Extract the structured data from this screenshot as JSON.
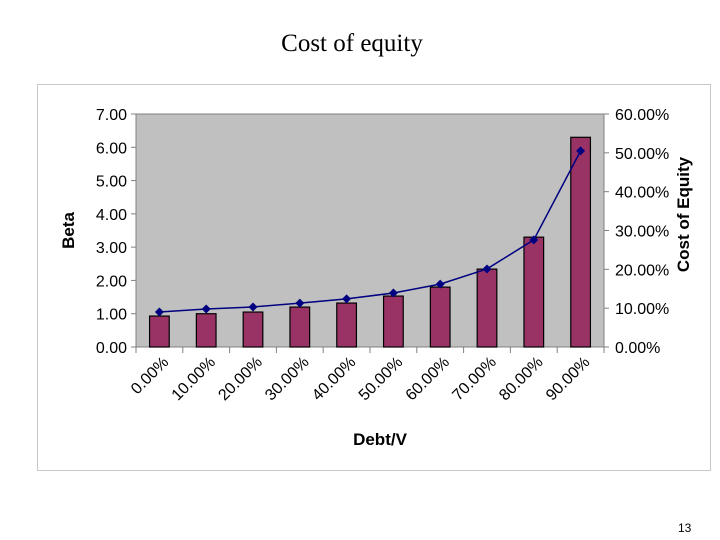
{
  "slide": {
    "title": "Cost of equity",
    "page_number": "13"
  },
  "colors": {
    "plot_background": "#c0c0c0",
    "bar_fill": "#993366",
    "bar_stroke": "#000000",
    "line": "#000080",
    "marker": "#000080"
  },
  "chart_data": {
    "type": "bar",
    "title": "",
    "xlabel": "Debt/V",
    "ylabel": "Beta",
    "y2label": "Cost of Equity",
    "categories": [
      "0.00%",
      "10.00%",
      "20.00%",
      "30.00%",
      "40.00%",
      "50.00%",
      "60.00%",
      "70.00%",
      "80.00%",
      "90.00%"
    ],
    "series": [
      {
        "name": "Beta",
        "type": "bar",
        "axis": "left",
        "values": [
          0.93,
          1.0,
          1.05,
          1.2,
          1.32,
          1.53,
          1.8,
          2.34,
          3.3,
          6.3
        ]
      },
      {
        "name": "Cost of Equity",
        "type": "line",
        "axis": "right",
        "values": [
          0.09,
          0.098,
          0.103,
          0.113,
          0.124,
          0.139,
          0.162,
          0.201,
          0.276,
          0.505
        ]
      }
    ],
    "ylim": [
      0,
      7
    ],
    "y2lim": [
      0,
      0.6
    ],
    "yticks": [
      "0.00",
      "1.00",
      "2.00",
      "3.00",
      "4.00",
      "5.00",
      "6.00",
      "7.00"
    ],
    "y2ticks": [
      "0.00%",
      "10.00%",
      "20.00%",
      "30.00%",
      "40.00%",
      "50.00%",
      "60.00%"
    ],
    "grid": false,
    "legend": "none"
  }
}
